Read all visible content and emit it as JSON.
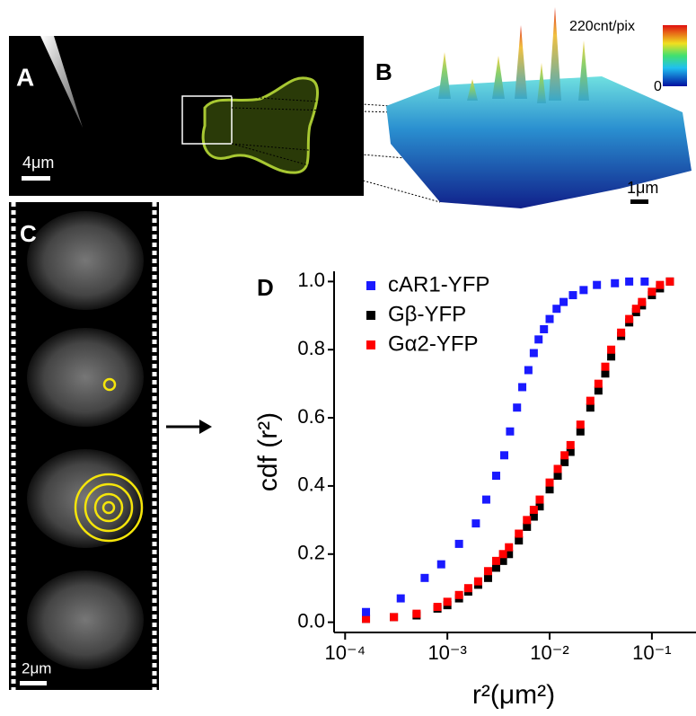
{
  "panels": {
    "a": {
      "label": "A",
      "scale": "4μm"
    },
    "b": {
      "label": "B",
      "scale": "1μm",
      "colorbar_max": "220cnt/pix",
      "colorbar_min": "0"
    },
    "c": {
      "label": "C",
      "scale": "2μm"
    }
  },
  "chart_data": {
    "type": "scatter",
    "panel_label": "D",
    "x_label": "r²(μm²)",
    "y_label": "cdf (r²)",
    "log_x": true,
    "xlim": [
      7.8e-05,
      0.27
    ],
    "ylim": [
      -0.03,
      1.03
    ],
    "xticks": [
      {
        "value": 0.0001,
        "label": "10⁻⁴"
      },
      {
        "value": 0.001,
        "label": "10⁻³"
      },
      {
        "value": 0.01,
        "label": "10⁻²"
      },
      {
        "value": 0.1,
        "label": "10⁻¹"
      }
    ],
    "yticks": [
      {
        "value": 0,
        "label": "0.0"
      },
      0.2,
      0.4,
      0.6,
      0.8,
      {
        "value": 1,
        "label": "1.0"
      }
    ],
    "legend": "top-left",
    "series": [
      {
        "name": "cAR1-YFP",
        "color": "#1a1aff",
        "x": [
          0.00016,
          0.00035,
          0.0006,
          0.00087,
          0.0013,
          0.0019,
          0.0024,
          0.003,
          0.0036,
          0.0041,
          0.0048,
          0.0054,
          0.0062,
          0.007,
          0.0078,
          0.0088,
          0.01,
          0.0117,
          0.0137,
          0.0169,
          0.0215,
          0.029,
          0.0435,
          0.06,
          0.085
        ],
        "values": [
          0.03,
          0.07,
          0.13,
          0.17,
          0.23,
          0.29,
          0.36,
          0.43,
          0.49,
          0.56,
          0.63,
          0.69,
          0.74,
          0.79,
          0.83,
          0.86,
          0.89,
          0.92,
          0.94,
          0.96,
          0.975,
          0.99,
          0.995,
          1.0,
          1.0
        ]
      },
      {
        "name": "Gβ-YFP",
        "color": "#000000",
        "x": [
          0.00016,
          0.0003,
          0.0005,
          0.0008,
          0.001,
          0.0013,
          0.0016,
          0.002,
          0.0025,
          0.003,
          0.0035,
          0.004,
          0.005,
          0.006,
          0.007,
          0.008,
          0.01,
          0.012,
          0.014,
          0.016,
          0.02,
          0.025,
          0.03,
          0.035,
          0.04,
          0.05,
          0.06,
          0.07,
          0.08,
          0.1,
          0.12,
          0.15
        ],
        "values": [
          0.01,
          0.015,
          0.02,
          0.04,
          0.05,
          0.07,
          0.09,
          0.11,
          0.13,
          0.16,
          0.18,
          0.2,
          0.24,
          0.28,
          0.31,
          0.34,
          0.39,
          0.43,
          0.47,
          0.5,
          0.56,
          0.63,
          0.68,
          0.73,
          0.78,
          0.84,
          0.88,
          0.91,
          0.93,
          0.96,
          0.98,
          1.0
        ]
      },
      {
        "name": "Gα2-YFP",
        "color": "#ff0000",
        "x": [
          0.00016,
          0.0003,
          0.0005,
          0.0008,
          0.001,
          0.0013,
          0.0016,
          0.002,
          0.0025,
          0.003,
          0.0035,
          0.004,
          0.005,
          0.006,
          0.007,
          0.008,
          0.01,
          0.012,
          0.014,
          0.016,
          0.02,
          0.025,
          0.03,
          0.035,
          0.04,
          0.05,
          0.06,
          0.07,
          0.08,
          0.1,
          0.12,
          0.15
        ],
        "values": [
          0.01,
          0.015,
          0.025,
          0.045,
          0.06,
          0.08,
          0.1,
          0.12,
          0.15,
          0.18,
          0.2,
          0.22,
          0.26,
          0.3,
          0.33,
          0.36,
          0.41,
          0.45,
          0.49,
          0.52,
          0.58,
          0.65,
          0.7,
          0.75,
          0.8,
          0.85,
          0.89,
          0.92,
          0.94,
          0.97,
          0.99,
          1.0
        ]
      }
    ]
  }
}
